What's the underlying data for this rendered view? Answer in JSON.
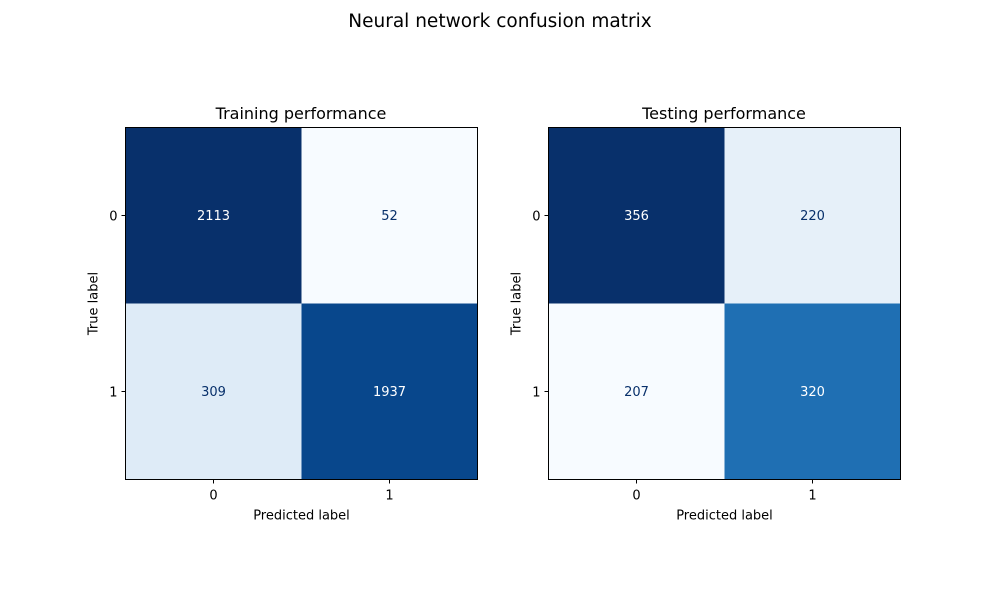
{
  "figure": {
    "title": "Neural network confusion matrix"
  },
  "chart_data": [
    {
      "type": "heatmap",
      "title": "Training performance",
      "xlabel": "Predicted label",
      "ylabel": "True label",
      "x_categories": [
        "0",
        "1"
      ],
      "y_categories": [
        "0",
        "1"
      ],
      "values": [
        [
          2113,
          52
        ],
        [
          309,
          1937
        ]
      ],
      "colormap": "Blues",
      "grid": false,
      "colorbar": false
    },
    {
      "type": "heatmap",
      "title": "Testing performance",
      "xlabel": "Predicted label",
      "ylabel": "True label",
      "x_categories": [
        "0",
        "1"
      ],
      "y_categories": [
        "0",
        "1"
      ],
      "values": [
        [
          356,
          220
        ],
        [
          207,
          320
        ]
      ],
      "colormap": "Blues",
      "grid": false,
      "colorbar": false
    }
  ]
}
